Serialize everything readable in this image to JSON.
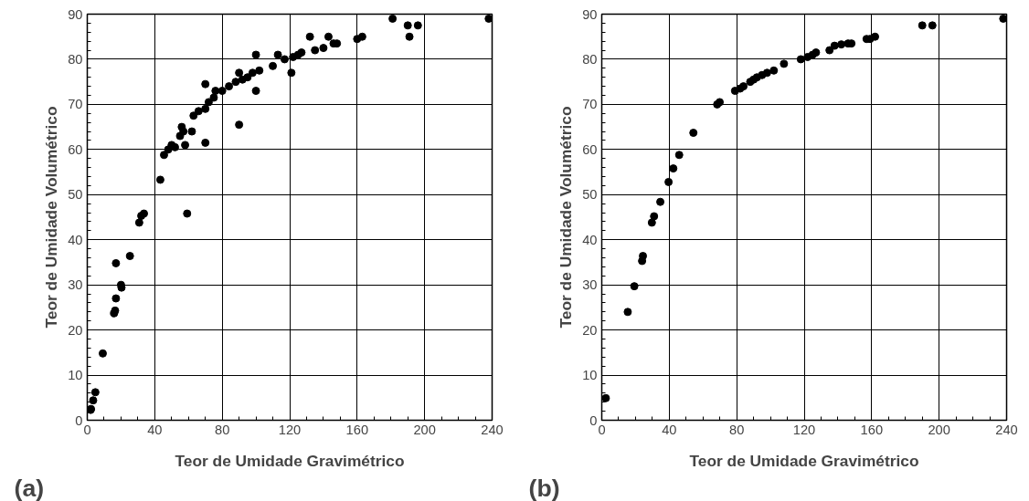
{
  "chart_data": [
    {
      "type": "scatter",
      "xlabel": "Teor de Umidade Gravimétrico",
      "ylabel": "Teor de Umidade Volumétrico",
      "annotations": [
        "(a)"
      ],
      "marker": "circle",
      "grid": true,
      "xlim": [
        0,
        240
      ],
      "ylim": [
        0,
        90
      ],
      "xticks": [
        0,
        40,
        80,
        120,
        160,
        200,
        240
      ],
      "yticks": [
        0,
        10,
        20,
        30,
        40,
        50,
        60,
        70,
        80,
        90
      ],
      "series": [
        {
          "color": "#000000",
          "x": [
            2.2,
            3.5,
            4.8,
            2,
            9.2,
            15.9,
            16.5,
            17,
            17,
            20.3,
            20,
            25.3,
            30.8,
            32,
            33.6,
            43.3,
            45.5,
            48,
            50,
            52,
            55,
            56,
            57,
            58,
            59.2,
            62,
            63,
            66,
            70,
            70,
            70,
            72,
            75,
            76,
            80,
            84,
            88,
            90,
            90,
            92,
            95,
            98,
            100,
            100,
            102,
            110,
            113,
            117,
            121,
            122,
            125,
            127,
            132,
            135,
            140,
            143,
            146,
            148,
            160,
            163,
            181,
            190,
            191,
            196,
            238
          ],
          "values": [
            2.5,
            4.4,
            6.2,
            2.3,
            14.8,
            23.7,
            24.3,
            27,
            34.8,
            29.4,
            30,
            36.4,
            43.8,
            45.3,
            45.8,
            53.3,
            58.8,
            60,
            61,
            60.5,
            63,
            65,
            64,
            61,
            45.8,
            64,
            67.5,
            68.5,
            69,
            74.5,
            61.5,
            70.5,
            71.5,
            73,
            73,
            74,
            75,
            77,
            65.5,
            75.5,
            76,
            77,
            81,
            73,
            77.5,
            78.5,
            81,
            80,
            77,
            80.5,
            81,
            81.5,
            85,
            82,
            82.5,
            85,
            83.5,
            83.5,
            84.5,
            85,
            89,
            87.5,
            85,
            87.5,
            89
          ]
        }
      ]
    },
    {
      "type": "scatter",
      "xlabel": "Teor de Umidade Gravimétrico",
      "ylabel": "Teor de Umidade Volumétrico",
      "annotations": [
        "(b)"
      ],
      "marker": "circle",
      "grid": true,
      "xlim": [
        0,
        240
      ],
      "ylim": [
        0,
        90
      ],
      "xticks": [
        0,
        40,
        80,
        120,
        160,
        200,
        240
      ],
      "yticks": [
        0,
        10,
        20,
        30,
        40,
        50,
        60,
        70,
        80,
        90
      ],
      "series": [
        {
          "color": "#000000",
          "x": [
            2.4,
            15.4,
            19.3,
            23.9,
            24.4,
            29.7,
            31,
            34.7,
            39.6,
            42.4,
            45.9,
            54.3,
            68.4,
            69.9,
            79,
            82,
            84,
            88,
            90,
            92,
            95,
            98,
            102,
            108,
            118,
            122,
            125,
            127,
            135,
            138,
            142,
            146,
            148,
            157,
            159,
            162,
            190,
            196,
            238
          ],
          "values": [
            4.9,
            24,
            29.7,
            35.3,
            36.4,
            43.8,
            45.2,
            48.4,
            52.8,
            55.8,
            58.8,
            63.7,
            70,
            70.5,
            73,
            73.5,
            74,
            75,
            75.5,
            76,
            76.5,
            77,
            77.5,
            79,
            80,
            80.5,
            81,
            81.5,
            82,
            83,
            83.3,
            83.5,
            83.5,
            84.5,
            84.5,
            85,
            87.5,
            87.5,
            89
          ]
        }
      ]
    }
  ]
}
